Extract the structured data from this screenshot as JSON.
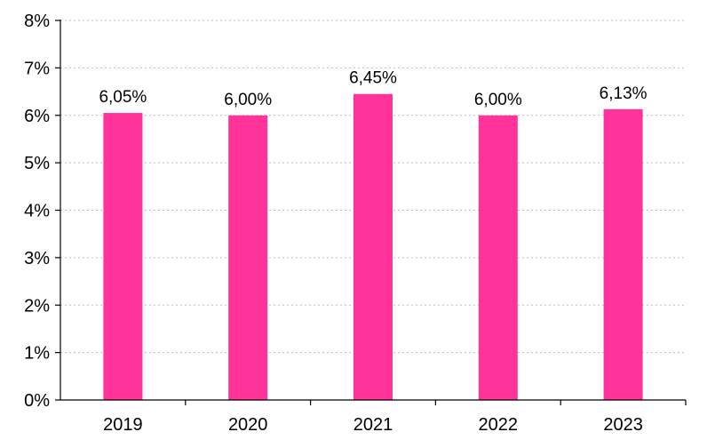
{
  "chart_data": {
    "type": "bar",
    "categories": [
      "2019",
      "2020",
      "2021",
      "2022",
      "2023"
    ],
    "values": [
      6.05,
      6.0,
      6.45,
      6.0,
      6.13
    ],
    "data_labels": [
      "6,05%",
      "6,00%",
      "6,45%",
      "6,00%",
      "6,13%"
    ],
    "y_ticks": [
      0,
      1,
      2,
      3,
      4,
      5,
      6,
      7,
      8
    ],
    "y_tick_labels": [
      "0%",
      "1%",
      "2%",
      "3%",
      "4%",
      "5%",
      "6%",
      "7%",
      "8%"
    ],
    "ylim": [
      0,
      8
    ],
    "grid": true,
    "legend": false,
    "bar_color": "#FF3399"
  }
}
